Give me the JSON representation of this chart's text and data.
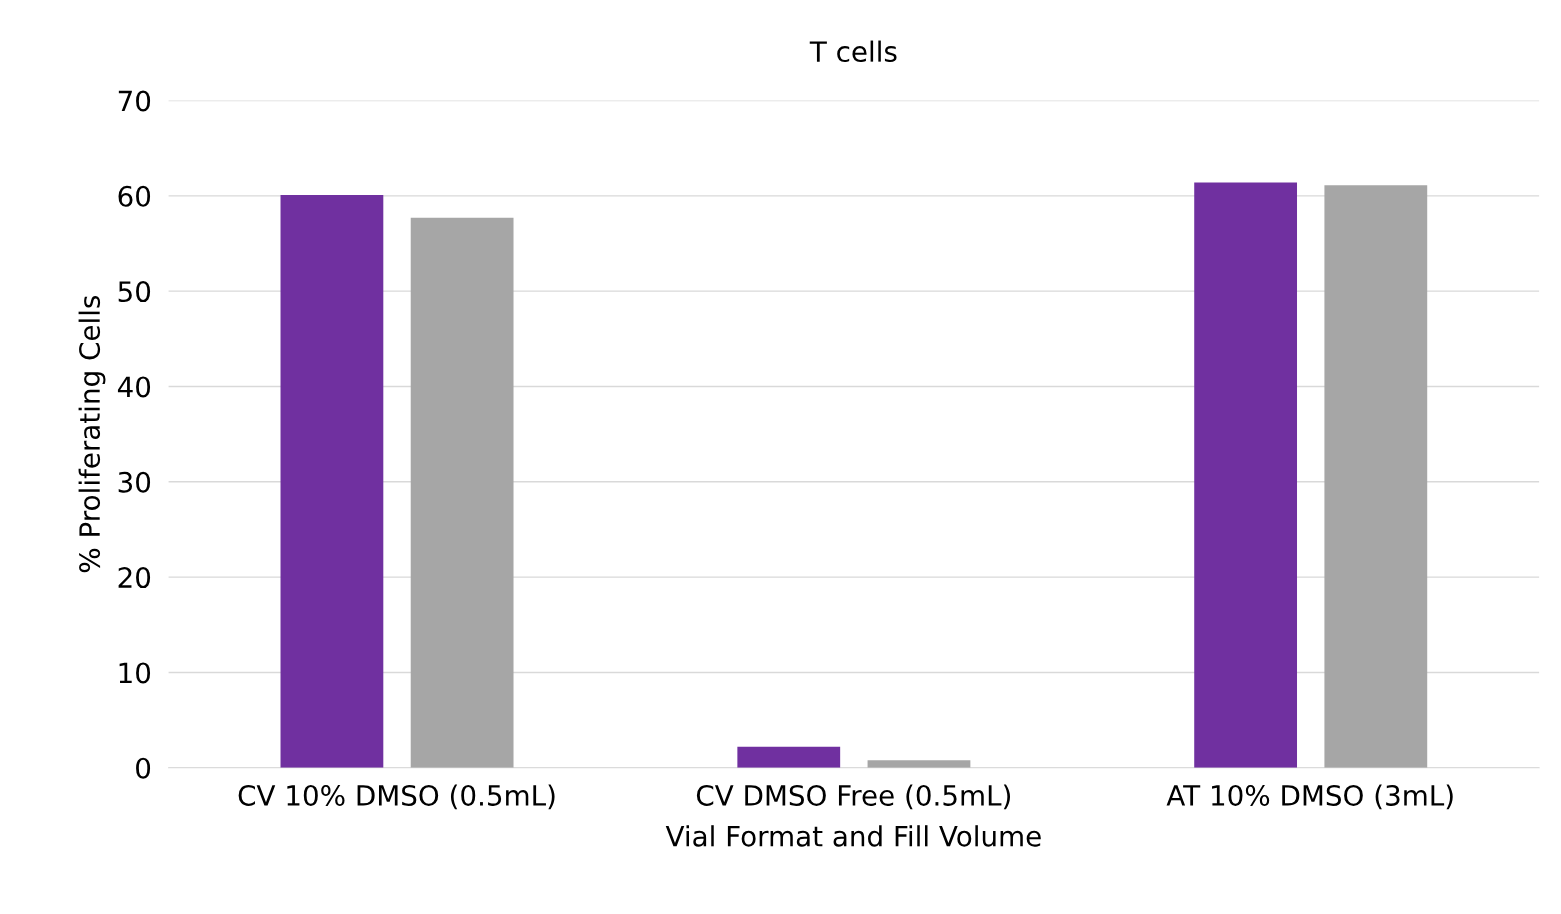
{
  "chart_data": {
    "type": "bar",
    "title": "T cells",
    "xlabel": "Vial Format and Fill Volume",
    "ylabel": "% Proliferating Cells",
    "categories": [
      "CV 10% DMSO (0.5mL)",
      "CV DMSO Free (0.5mL)",
      "AT 10% DMSO (3mL)"
    ],
    "series": [
      {
        "color": "#7030a0",
        "values": [
          60.1,
          2.2,
          61.4
        ]
      },
      {
        "color": "#a6a6a6",
        "values": [
          57.7,
          0.8,
          61.1
        ]
      }
    ],
    "ylim": [
      0,
      70
    ],
    "yticks": [
      0,
      10,
      20,
      30,
      40,
      50,
      60,
      70
    ],
    "grid": "y"
  }
}
